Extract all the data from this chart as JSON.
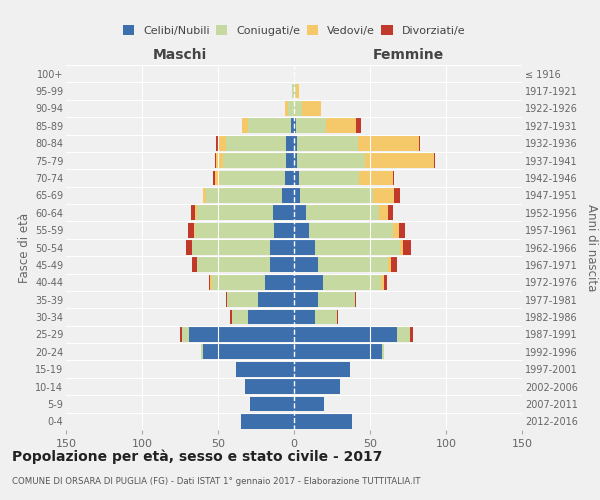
{
  "age_groups": [
    "0-4",
    "5-9",
    "10-14",
    "15-19",
    "20-24",
    "25-29",
    "30-34",
    "35-39",
    "40-44",
    "45-49",
    "50-54",
    "55-59",
    "60-64",
    "65-69",
    "70-74",
    "75-79",
    "80-84",
    "85-89",
    "90-94",
    "95-99",
    "100+"
  ],
  "birth_years": [
    "2012-2016",
    "2007-2011",
    "2002-2006",
    "1997-2001",
    "1992-1996",
    "1987-1991",
    "1982-1986",
    "1977-1981",
    "1972-1976",
    "1967-1971",
    "1962-1966",
    "1957-1961",
    "1952-1956",
    "1947-1951",
    "1942-1946",
    "1937-1941",
    "1932-1936",
    "1927-1931",
    "1922-1926",
    "1917-1921",
    "≤ 1916"
  ],
  "male": {
    "celibi": [
      35,
      29,
      32,
      38,
      60,
      69,
      30,
      24,
      19,
      16,
      16,
      13,
      14,
      8,
      6,
      5,
      5,
      2,
      0,
      0,
      0
    ],
    "coniugati": [
      0,
      0,
      0,
      0,
      1,
      5,
      11,
      20,
      35,
      48,
      51,
      52,
      50,
      50,
      43,
      42,
      40,
      28,
      4,
      1,
      0
    ],
    "vedovi": [
      0,
      0,
      0,
      0,
      0,
      0,
      0,
      0,
      1,
      0,
      0,
      1,
      1,
      2,
      3,
      4,
      5,
      4,
      2,
      0,
      0
    ],
    "divorziati": [
      0,
      0,
      0,
      0,
      0,
      1,
      1,
      1,
      1,
      3,
      4,
      4,
      3,
      0,
      1,
      1,
      1,
      0,
      0,
      0,
      0
    ]
  },
  "female": {
    "nubili": [
      38,
      20,
      30,
      37,
      58,
      68,
      14,
      16,
      19,
      16,
      14,
      10,
      8,
      4,
      3,
      2,
      2,
      1,
      0,
      0,
      0
    ],
    "coniugate": [
      0,
      0,
      0,
      0,
      1,
      8,
      14,
      24,
      38,
      46,
      56,
      55,
      48,
      48,
      40,
      45,
      40,
      20,
      5,
      1,
      0
    ],
    "vedove": [
      0,
      0,
      0,
      0,
      0,
      0,
      0,
      0,
      2,
      2,
      2,
      4,
      6,
      14,
      22,
      45,
      40,
      20,
      13,
      2,
      0
    ],
    "divorziate": [
      0,
      0,
      0,
      0,
      0,
      2,
      1,
      1,
      2,
      4,
      5,
      4,
      3,
      4,
      1,
      1,
      1,
      3,
      0,
      0,
      0
    ]
  },
  "colors": {
    "celibi": "#3d6fad",
    "coniugati": "#c5d9a0",
    "vedovi": "#f5c96a",
    "divorziati": "#c0392b"
  },
  "xlim": 150,
  "title": "Popolazione per età, sesso e stato civile - 2017",
  "subtitle": "COMUNE DI ORSARA DI PUGLIA (FG) - Dati ISTAT 1° gennaio 2017 - Elaborazione TUTTITALIA.IT",
  "ylabel_left": "Fasce di età",
  "ylabel_right": "Anni di nascita",
  "xlabel_left": "Maschi",
  "xlabel_right": "Femmine",
  "bg_color": "#f0f0f0",
  "bar_height": 0.85
}
